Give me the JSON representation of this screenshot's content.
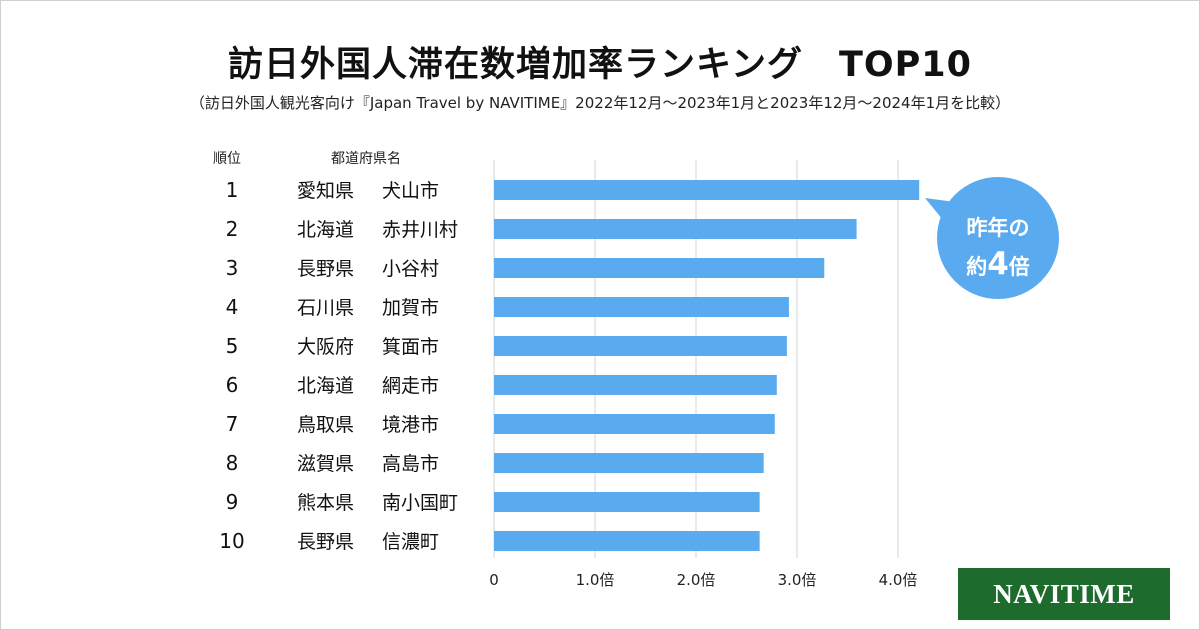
{
  "title": "訪日外国人滞在数増加率ランキング　TOP10",
  "subtitle": "（訪日外国人観光客向け『Japan Travel by NAVITIME』2022年12月～2023年1月と2023年12月～2024年1月を比較）",
  "headers": {
    "rank": "順位",
    "name": "都道府県名"
  },
  "logo": "NAVITIME",
  "callout": {
    "line1": "昨年の",
    "line2_prefix": "約",
    "line2_number": "4",
    "line2_suffix": "倍"
  },
  "colors": {
    "bar": "#5aaaf0",
    "grid": "#d6d6d6",
    "logo_bg": "#1e6b2e"
  },
  "chart_data": {
    "type": "bar",
    "orientation": "horizontal",
    "title": "訪日外国人滞在数増加率ランキング　TOP10",
    "categories": [
      {
        "rank": "1",
        "pref": "愛知県",
        "city": "犬山市"
      },
      {
        "rank": "2",
        "pref": "北海道",
        "city": "赤井川村"
      },
      {
        "rank": "3",
        "pref": "長野県",
        "city": "小谷村"
      },
      {
        "rank": "4",
        "pref": "石川県",
        "city": "加賀市"
      },
      {
        "rank": "5",
        "pref": "大阪府",
        "city": "箕面市"
      },
      {
        "rank": "6",
        "pref": "北海道",
        "city": "網走市"
      },
      {
        "rank": "7",
        "pref": "鳥取県",
        "city": "境港市"
      },
      {
        "rank": "8",
        "pref": "滋賀県",
        "city": "高島市"
      },
      {
        "rank": "9",
        "pref": "熊本県",
        "city": "南小国町"
      },
      {
        "rank": "10",
        "pref": "長野県",
        "city": "信濃町"
      }
    ],
    "values": [
      4.21,
      3.59,
      3.27,
      2.92,
      2.9,
      2.8,
      2.78,
      2.67,
      2.63,
      2.63
    ],
    "xlim": [
      0,
      4.21
    ],
    "xticks": [
      "0",
      "1.0倍",
      "2.0倍",
      "3.0倍",
      "4.0倍"
    ],
    "xtick_values": [
      0,
      1,
      2,
      3,
      4
    ],
    "grid": true
  }
}
